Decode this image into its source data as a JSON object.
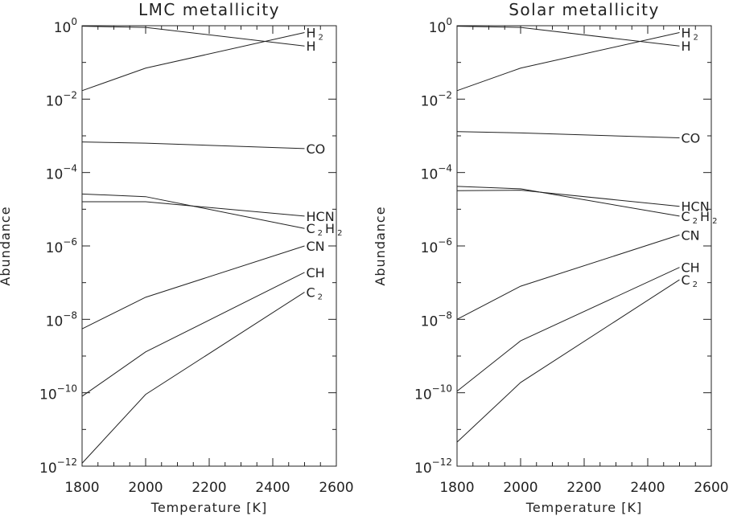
{
  "chart_data": [
    {
      "type": "line",
      "title": "LMC metallicity",
      "xlabel": "Temperature [K]",
      "ylabel": "Abundance",
      "xlim": [
        1800,
        2600
      ],
      "ylim": [
        1e-12,
        1
      ],
      "yscale": "log",
      "x_ticks": [
        1800,
        2000,
        2200,
        2400,
        2600
      ],
      "y_ticks": [
        "10^0",
        "10^-2",
        "10^-4",
        "10^-6",
        "10^-8",
        "10^-10",
        "10^-12"
      ],
      "series": [
        {
          "name": "H",
          "label": {
            "base": "H",
            "sub": ""
          },
          "x": [
            1800,
            2000,
            2500
          ],
          "y": [
            0.97,
            0.9,
            0.28
          ]
        },
        {
          "name": "H2",
          "label": {
            "base": "H",
            "sub": "2"
          },
          "x": [
            1800,
            2000,
            2500
          ],
          "y": [
            0.017,
            0.07,
            0.65
          ]
        },
        {
          "name": "CO",
          "label": {
            "base": "CO",
            "sub": ""
          },
          "x": [
            1800,
            2000,
            2500
          ],
          "y": [
            0.00068,
            0.00063,
            0.00045
          ]
        },
        {
          "name": "HCN",
          "label": {
            "base": "HCN",
            "sub": ""
          },
          "x": [
            1800,
            2000,
            2500
          ],
          "y": [
            1.6e-05,
            1.6e-05,
            6.5e-06
          ]
        },
        {
          "name": "C2H2",
          "label": {
            "base": "C",
            "sub": "2",
            "base2": "H",
            "sub2": "2"
          },
          "x": [
            1800,
            2000,
            2500
          ],
          "y": [
            2.6e-05,
            2.2e-05,
            3e-06
          ]
        },
        {
          "name": "CN",
          "label": {
            "base": "CN",
            "sub": ""
          },
          "x": [
            1800,
            2000,
            2500
          ],
          "y": [
            5.5e-09,
            4e-08,
            1e-06
          ]
        },
        {
          "name": "CH",
          "label": {
            "base": "CH",
            "sub": ""
          },
          "x": [
            1800,
            2000,
            2500
          ],
          "y": [
            8e-11,
            1.3e-09,
            1.9e-07
          ]
        },
        {
          "name": "C2",
          "label": {
            "base": "C",
            "sub": "2"
          },
          "x": [
            1800,
            2000,
            2500
          ],
          "y": [
            1.2e-12,
            9e-11,
            5.5e-08
          ]
        }
      ]
    },
    {
      "type": "line",
      "title": "Solar metallicity",
      "xlabel": "Temperature [K]",
      "ylabel": "Abundance",
      "xlim": [
        1800,
        2600
      ],
      "ylim": [
        1e-12,
        1
      ],
      "yscale": "log",
      "x_ticks": [
        1800,
        2000,
        2200,
        2400,
        2600
      ],
      "y_ticks": [
        "10^0",
        "10^-2",
        "10^-4",
        "10^-6",
        "10^-8",
        "10^-10",
        "10^-12"
      ],
      "series": [
        {
          "name": "H",
          "label": {
            "base": "H",
            "sub": ""
          },
          "x": [
            1800,
            2000,
            2500
          ],
          "y": [
            0.97,
            0.9,
            0.28
          ]
        },
        {
          "name": "H2",
          "label": {
            "base": "H",
            "sub": "2"
          },
          "x": [
            1800,
            2000,
            2500
          ],
          "y": [
            0.017,
            0.07,
            0.65
          ]
        },
        {
          "name": "CO",
          "label": {
            "base": "CO",
            "sub": ""
          },
          "x": [
            1800,
            2000,
            2500
          ],
          "y": [
            0.0013,
            0.0012,
            0.00088
          ]
        },
        {
          "name": "HCN",
          "label": {
            "base": "HCN",
            "sub": ""
          },
          "x": [
            1800,
            2000,
            2500
          ],
          "y": [
            3.2e-05,
            3.3e-05,
            1.2e-05
          ]
        },
        {
          "name": "C2H2",
          "label": {
            "base": "C",
            "sub": "2",
            "base2": "H",
            "sub2": "2"
          },
          "x": [
            1800,
            2000,
            2500
          ],
          "y": [
            4.2e-05,
            3.6e-05,
            6.5e-06
          ]
        },
        {
          "name": "CN",
          "label": {
            "base": "CN",
            "sub": ""
          },
          "x": [
            1800,
            2000,
            2500
          ],
          "y": [
            1e-08,
            8e-08,
            2e-06
          ]
        },
        {
          "name": "CH",
          "label": {
            "base": "CH",
            "sub": ""
          },
          "x": [
            1800,
            2000,
            2500
          ],
          "y": [
            1.1e-10,
            2.6e-09,
            2.6e-07
          ]
        },
        {
          "name": "C2",
          "label": {
            "base": "C",
            "sub": "2"
          },
          "x": [
            1800,
            2000,
            2500
          ],
          "y": [
            4.5e-12,
            1.9e-10,
            1.2e-07
          ]
        }
      ]
    }
  ],
  "colors": {
    "axis": "#222222",
    "line": "#222222",
    "background": "#ffffff"
  }
}
